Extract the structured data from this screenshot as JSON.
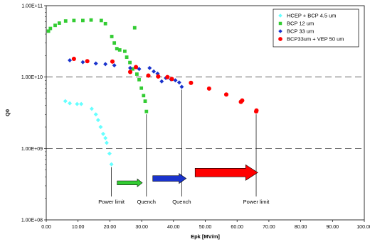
{
  "chart_data": {
    "type": "scatter",
    "title": "",
    "xlabel": "Epk [MV/m]",
    "ylabel": "Q0",
    "xlim": [
      0,
      100
    ],
    "ylim": [
      100000000,
      100000000000
    ],
    "y_scale": "log",
    "x_ticks": [
      "0.00",
      "10.00",
      "20.00",
      "30.00",
      "40.00",
      "50.00",
      "60.00",
      "70.00",
      "80.00",
      "90.00",
      "100.00"
    ],
    "y_ticks": [
      "1.00E+08",
      "1.00E+09",
      "1.00E+10",
      "1.00E+11"
    ],
    "grid": "horizontal-dashed",
    "legend_position": "top-right",
    "series": [
      {
        "name": "HCEP + BCP 4.5 um",
        "color": "#66ffff",
        "marker": "diamond",
        "points": [
          [
            6.0,
            4600000000.0
          ],
          [
            7.4,
            4300000000.0
          ],
          [
            9.7,
            4200000000.0
          ],
          [
            11.0,
            4200000000.0
          ],
          [
            14.3,
            3600000000.0
          ],
          [
            15.6,
            3000000000.0
          ],
          [
            16.3,
            2500000000.0
          ],
          [
            17.1,
            2000000000.0
          ],
          [
            17.9,
            1600000000.0
          ],
          [
            18.6,
            1400000000.0
          ],
          [
            19.0,
            1200000000.0
          ],
          [
            19.9,
            850000000.0
          ],
          [
            20.5,
            600000000.0
          ]
        ]
      },
      {
        "name": "BCP 12 um",
        "color": "#33cc33",
        "marker": "square",
        "points": [
          [
            0.7,
            44000000000.0
          ],
          [
            1.3,
            48000000000.0
          ],
          [
            2.8,
            53000000000.0
          ],
          [
            4.1,
            57000000000.0
          ],
          [
            6.1,
            61000000000.0
          ],
          [
            8.7,
            62000000000.0
          ],
          [
            11.5,
            62000000000.0
          ],
          [
            14.1,
            63000000000.0
          ],
          [
            17.3,
            62000000000.0
          ],
          [
            18.6,
            56000000000.0
          ],
          [
            20.6,
            37000000000.0
          ],
          [
            21.4,
            30000000000.0
          ],
          [
            22.2,
            25000000000.0
          ],
          [
            23.1,
            24000000000.0
          ],
          [
            24.7,
            23000000000.0
          ],
          [
            25.3,
            19000000000.0
          ],
          [
            26.3,
            16000000000.0
          ],
          [
            27.2,
            13000000000.0
          ],
          [
            27.8,
            49000000000.0
          ],
          [
            28.5,
            11000000000.0
          ],
          [
            29.2,
            9200000000.0
          ],
          [
            29.9,
            7000000000.0
          ],
          [
            30.6,
            5500000000.0
          ],
          [
            31.1,
            4600000000.0
          ],
          [
            31.5,
            3300000000.0
          ]
        ]
      },
      {
        "name": "BCP 33 um",
        "color": "#1a33cc",
        "marker": "diamond",
        "points": [
          [
            7.4,
            17200000000.0
          ],
          [
            11.5,
            16200000000.0
          ],
          [
            15.6,
            15500000000.0
          ],
          [
            18.6,
            15200000000.0
          ],
          [
            21.4,
            14600000000.0
          ],
          [
            26.4,
            13400000000.0
          ],
          [
            29.2,
            13000000000.0
          ],
          [
            32.5,
            13400000000.0
          ],
          [
            33.8,
            12000000000.0
          ],
          [
            35.0,
            11200000000.0
          ],
          [
            36.3,
            8700000000.0
          ],
          [
            37.6,
            9700000000.0
          ],
          [
            39.2,
            9300000000.0
          ],
          [
            40.6,
            9000000000.0
          ],
          [
            41.8,
            8400000000.0
          ],
          [
            42.6,
            7300000000.0
          ]
        ]
      },
      {
        "name": "BCP33um + VEP 50 um",
        "color": "#ff0000",
        "marker": "circle",
        "points": [
          [
            8.7,
            18000000000.0
          ],
          [
            12.9,
            16700000000.0
          ],
          [
            20.8,
            16500000000.0
          ],
          [
            26.4,
            11800000000.0
          ],
          [
            28.2,
            13800000000.0
          ],
          [
            32.1,
            10500000000.0
          ],
          [
            35.2,
            10200000000.0
          ],
          [
            38.1,
            10000000000.0
          ],
          [
            39.5,
            9400000000.0
          ],
          [
            45.5,
            8300000000.0
          ],
          [
            51.2,
            6900000000.0
          ],
          [
            56.6,
            5700000000.0
          ],
          [
            61.2,
            4500000000.0
          ],
          [
            61.6,
            4700000000.0
          ],
          [
            66.0,
            3300000000.0
          ],
          [
            66.1,
            3400000000.0
          ]
        ]
      }
    ],
    "arrows": [
      {
        "color": "#33cc33",
        "x_from": 22.3,
        "x_to": 30.2,
        "y": 330000000.0,
        "size": "small"
      },
      {
        "color": "#1a33cc",
        "x_from": 33.5,
        "x_to": 44.0,
        "y": 380000000.0,
        "size": "medium"
      },
      {
        "color": "#ff0000",
        "x_from": 46.8,
        "x_to": 66.5,
        "y": 460000000.0,
        "size": "large"
      }
    ],
    "annotations": [
      {
        "text": "Power limit",
        "x": 20.5,
        "y_top": 600000000.0
      },
      {
        "text": "Quench",
        "x": 31.5,
        "y_top": 3300000000.0
      },
      {
        "text": "Quench",
        "x": 42.6,
        "y_top": 7300000000.0
      },
      {
        "text": "Power limit",
        "x": 66.0,
        "y_top": 3300000000.0
      }
    ]
  }
}
